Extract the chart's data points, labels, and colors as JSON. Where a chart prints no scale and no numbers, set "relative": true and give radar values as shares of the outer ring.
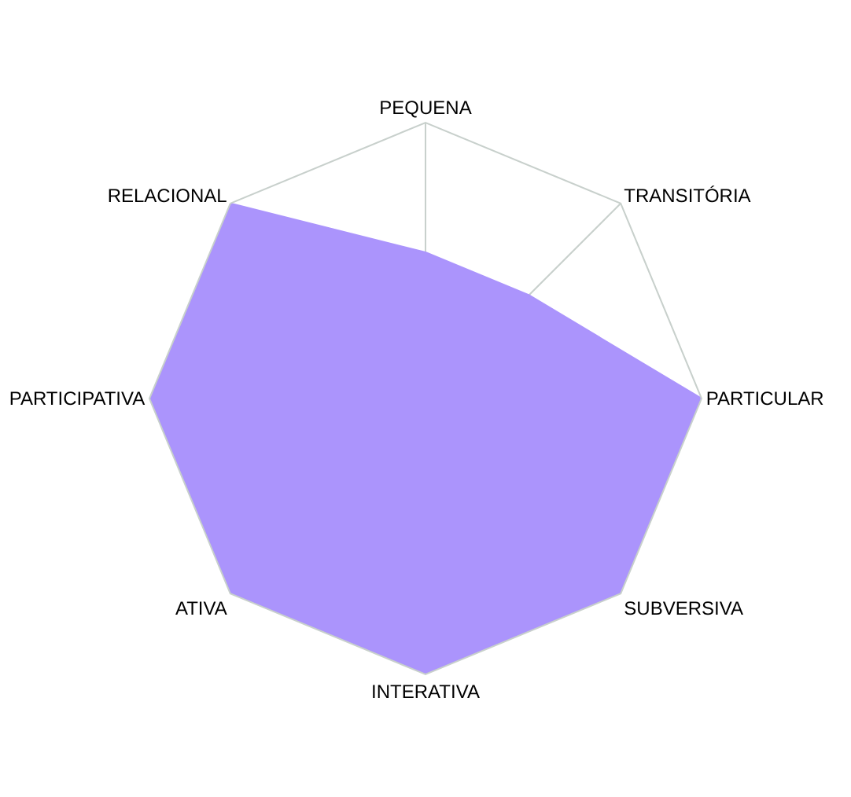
{
  "chart_data": {
    "type": "radar",
    "relative": true,
    "grid": true,
    "categories": [
      "PEQUENA",
      "TRANSITÓRIA",
      "PARTICULAR",
      "SUBVERSIVA",
      "INTERATIVA",
      "ATIVA",
      "PARTICIPATIVA",
      "RELACIONAL"
    ],
    "series": [
      {
        "color": "#ab94fc",
        "values": [
          0.53,
          0.53,
          1,
          1,
          1,
          1,
          1,
          1
        ]
      }
    ]
  }
}
